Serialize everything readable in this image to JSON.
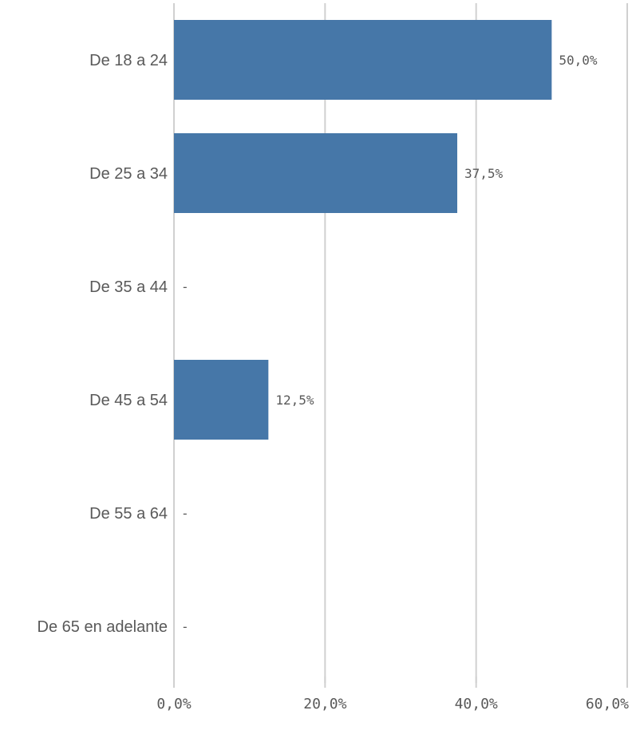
{
  "chart_data": {
    "type": "bar",
    "orientation": "horizontal",
    "categories": [
      "De 18 a 24",
      "De 25 a 34",
      "De 35 a 44",
      "De 45 a 54",
      "De 55 a 64",
      "De 65 en adelante"
    ],
    "values": [
      50.0,
      37.5,
      null,
      12.5,
      null,
      null
    ],
    "value_labels": [
      "50,0%",
      "37,5%",
      "-",
      "12,5%",
      "-",
      "-"
    ],
    "x_ticks": [
      0,
      20,
      40,
      60
    ],
    "x_tick_labels": [
      "0,0%",
      "20,0%",
      "40,0%",
      "60,0%"
    ],
    "xlim": [
      0,
      60
    ],
    "grid": true,
    "legend": "none",
    "bar_color": "#4677a8",
    "gridline_color": "#d0d0d0",
    "text_color": "#595959"
  }
}
